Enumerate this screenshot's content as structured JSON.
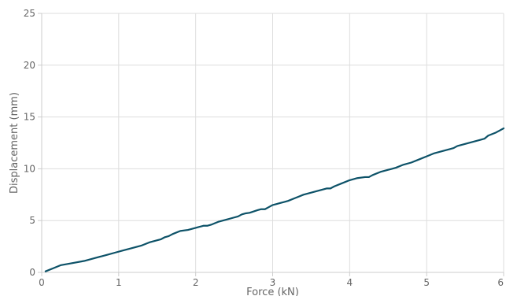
{
  "chart_data": {
    "type": "line",
    "xlabel": "Force (kN)",
    "ylabel": "Displacement (mm)",
    "xlim": [
      0,
      6
    ],
    "ylim": [
      0,
      25
    ],
    "xticks": [
      0,
      1,
      2,
      3,
      4,
      5,
      6
    ],
    "yticks": [
      0,
      5,
      10,
      15,
      20,
      25
    ],
    "grid": true,
    "legend": "none",
    "line_color": "#0d5268",
    "series": [
      {
        "x": [
          0.05,
          0.15,
          0.25,
          0.4,
          0.55,
          0.7,
          0.85,
          0.95,
          1.05,
          1.2,
          1.3,
          1.4,
          1.5,
          1.55,
          1.6,
          1.65,
          1.7,
          1.8,
          1.9,
          2.0,
          2.05,
          2.1,
          2.15,
          2.2,
          2.3,
          2.4,
          2.5,
          2.55,
          2.6,
          2.65,
          2.7,
          2.8,
          2.85,
          2.9,
          2.95,
          3.0,
          3.05,
          3.1,
          3.15,
          3.2,
          3.3,
          3.4,
          3.5,
          3.6,
          3.7,
          3.75,
          3.8,
          3.9,
          4.0,
          4.1,
          4.2,
          4.25,
          4.3,
          4.4,
          4.5,
          4.55,
          4.6,
          4.7,
          4.8,
          4.9,
          5.0,
          5.1,
          5.2,
          5.3,
          5.35,
          5.4,
          5.5,
          5.6,
          5.7,
          5.75,
          5.8,
          5.9,
          6.0
        ],
        "y": [
          0.1,
          0.4,
          0.7,
          0.9,
          1.1,
          1.4,
          1.7,
          1.9,
          2.1,
          2.4,
          2.6,
          2.9,
          3.1,
          3.2,
          3.4,
          3.5,
          3.7,
          4.0,
          4.1,
          4.3,
          4.4,
          4.5,
          4.5,
          4.6,
          4.9,
          5.1,
          5.3,
          5.4,
          5.6,
          5.7,
          5.75,
          6.0,
          6.1,
          6.1,
          6.3,
          6.5,
          6.6,
          6.7,
          6.8,
          6.9,
          7.2,
          7.5,
          7.7,
          7.9,
          8.1,
          8.1,
          8.3,
          8.6,
          8.9,
          9.1,
          9.2,
          9.2,
          9.4,
          9.7,
          9.9,
          10.0,
          10.1,
          10.4,
          10.6,
          10.9,
          11.2,
          11.5,
          11.7,
          11.9,
          12.0,
          12.2,
          12.4,
          12.6,
          12.8,
          12.9,
          13.2,
          13.5,
          13.9
        ]
      }
    ]
  }
}
